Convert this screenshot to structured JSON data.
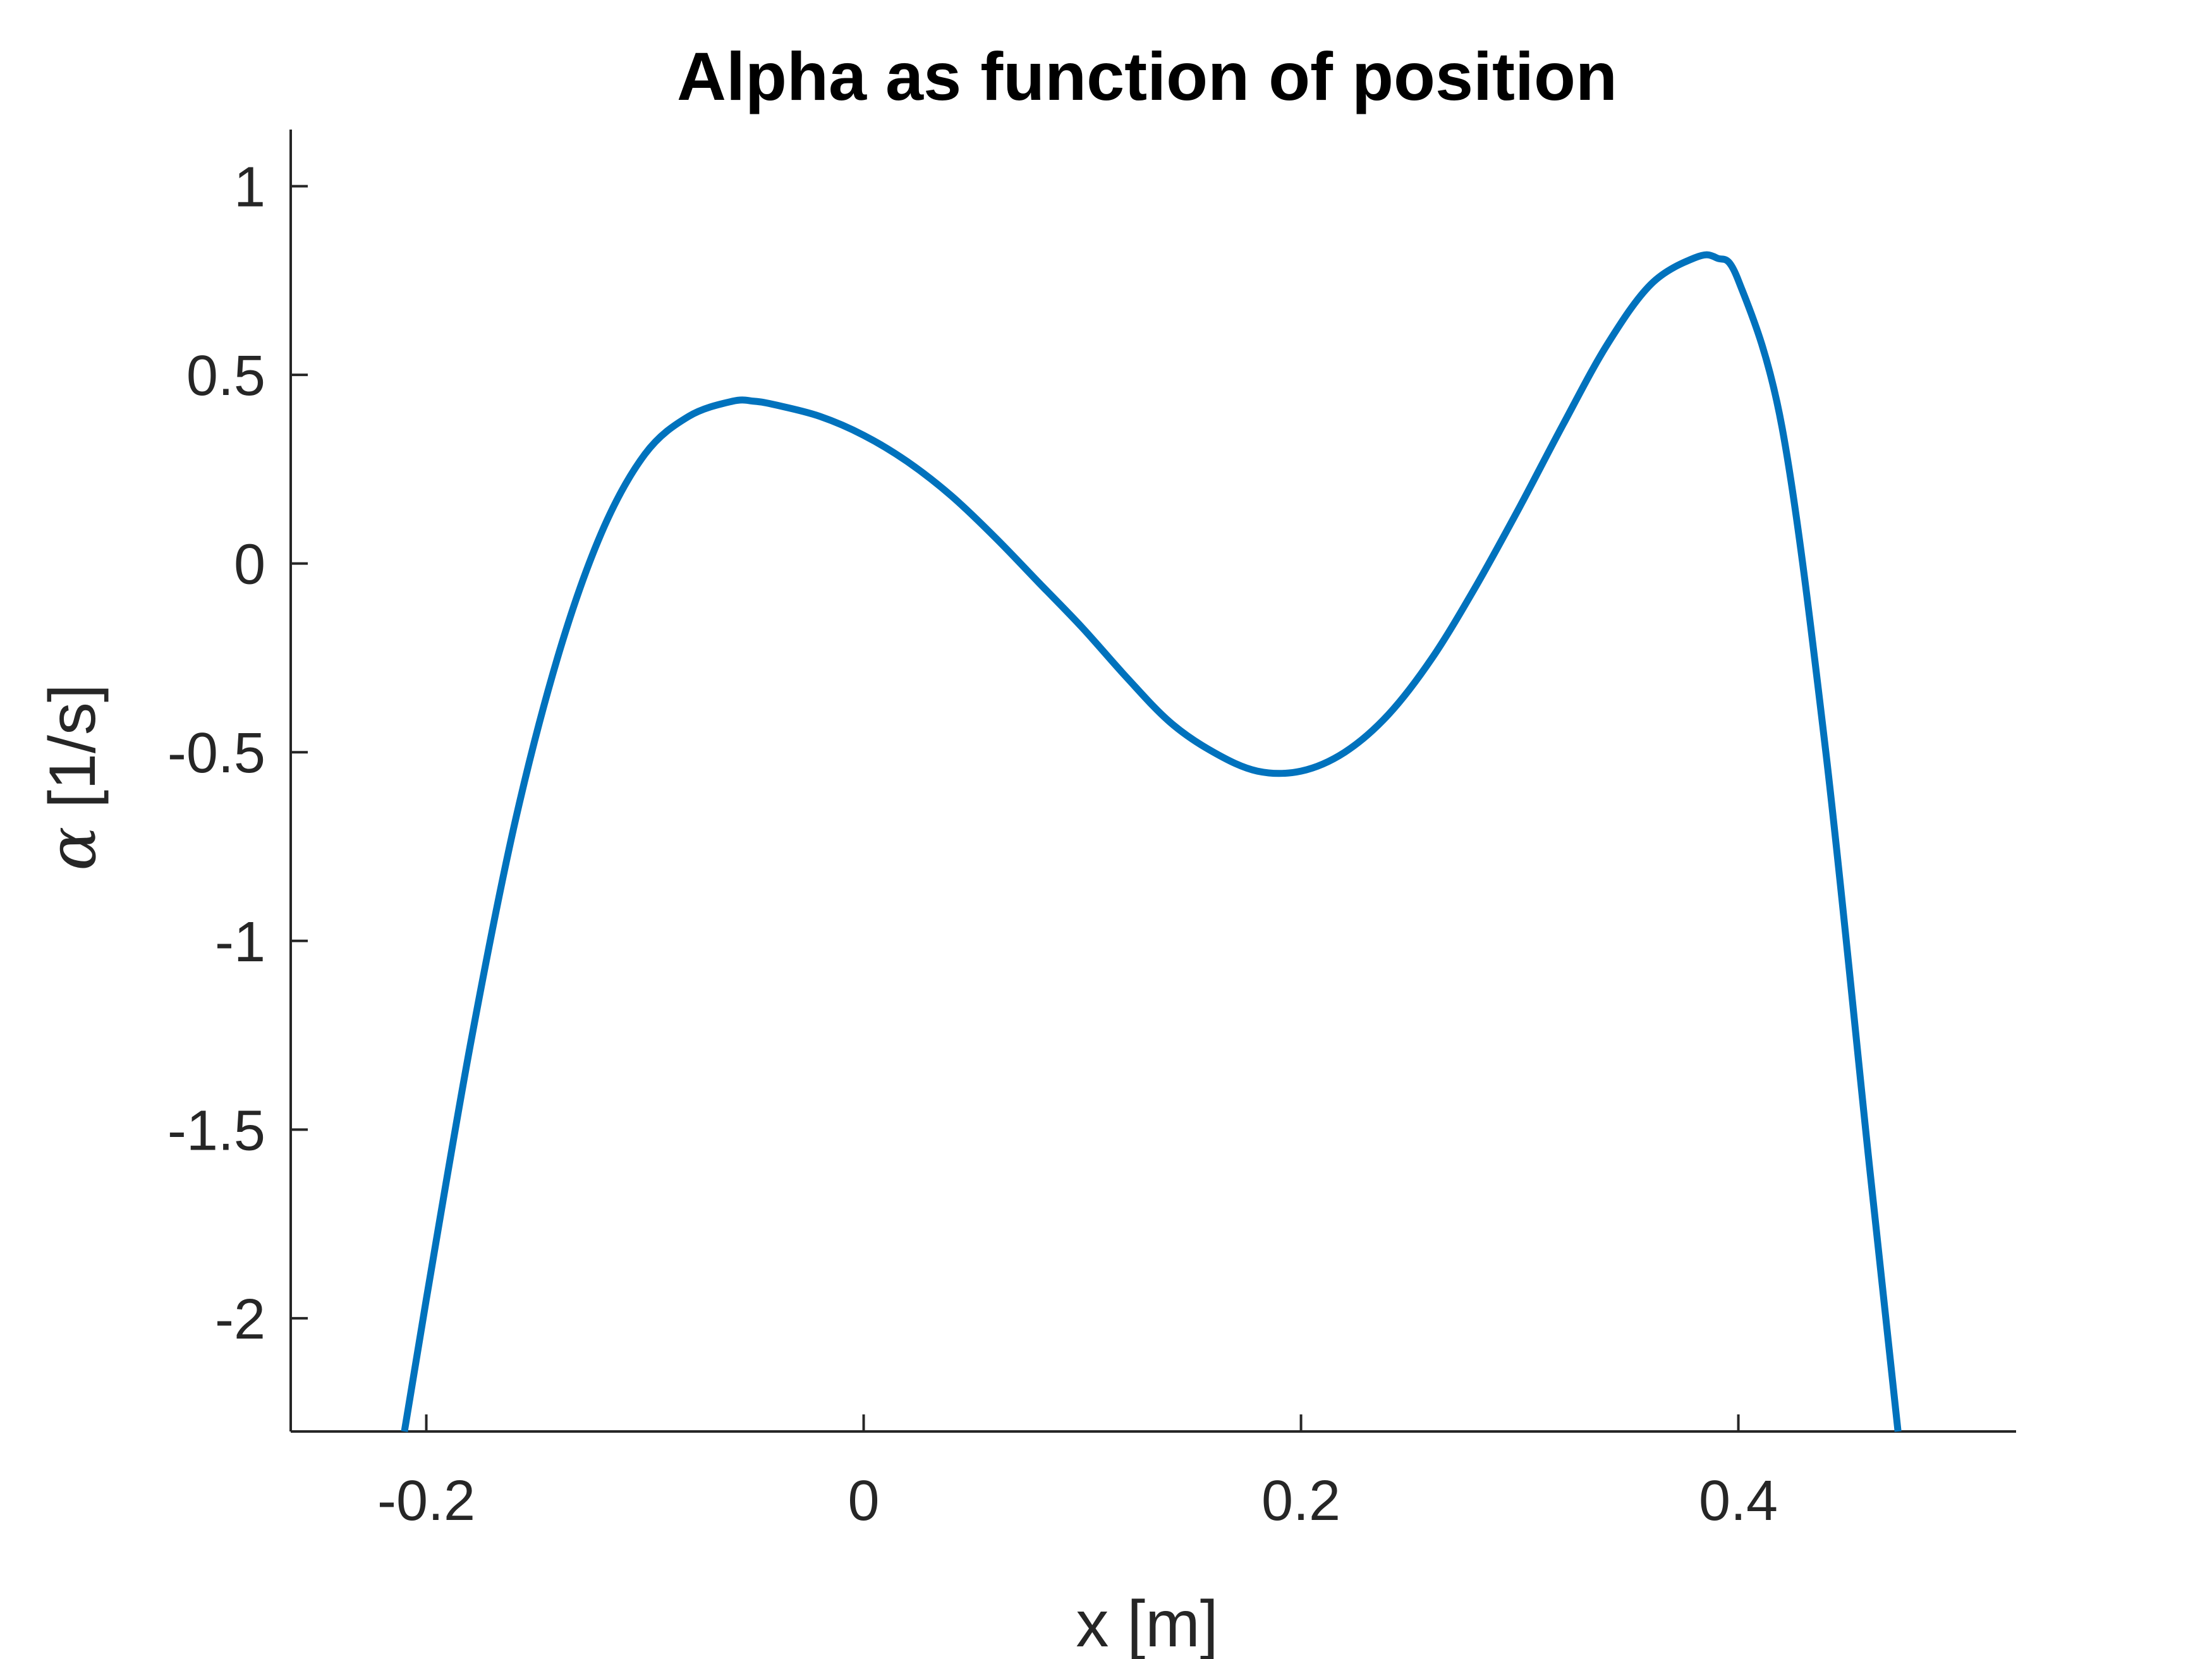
{
  "chart_data": {
    "type": "line",
    "title": "Alpha as function of position",
    "xlabel": "x [m]",
    "ylabel_symbol": "α",
    "ylabel_unit": " [1/s]",
    "xlim": [
      -0.262,
      0.527
    ],
    "ylim": [
      -2.3,
      1.15
    ],
    "xticks": [
      -0.2,
      0,
      0.2,
      0.4
    ],
    "xtick_labels": [
      "-0.2",
      "0",
      "0.2",
      "0.4"
    ],
    "yticks": [
      1,
      0.5,
      0,
      -0.5,
      -1,
      -1.5,
      -2
    ],
    "ytick_labels": [
      "1",
      "0.5",
      "0",
      "-0.5",
      "-1",
      "-1.5",
      "-2"
    ],
    "grid": false,
    "series": [
      {
        "color": "#0072BD",
        "x": [
          -0.21,
          -0.2,
          -0.18,
          -0.16,
          -0.14,
          -0.12,
          -0.1,
          -0.08,
          -0.06,
          -0.05,
          -0.04,
          -0.02,
          0,
          0.02,
          0.04,
          0.06,
          0.08,
          0.1,
          0.12,
          0.14,
          0.16,
          0.18,
          0.2,
          0.22,
          0.24,
          0.26,
          0.28,
          0.3,
          0.32,
          0.34,
          0.36,
          0.38,
          0.39,
          0.4,
          0.42,
          0.44,
          0.46,
          0.473
        ],
        "y": [
          -2.3,
          -1.95,
          -1.28,
          -0.7,
          -0.25,
          0.08,
          0.29,
          0.39,
          0.43,
          0.43,
          0.42,
          0.39,
          0.34,
          0.27,
          0.18,
          0.07,
          -0.05,
          -0.17,
          -0.3,
          -0.42,
          -0.5,
          -0.55,
          -0.55,
          -0.5,
          -0.4,
          -0.25,
          -0.06,
          0.15,
          0.37,
          0.58,
          0.74,
          0.81,
          0.81,
          0.75,
          0.36,
          -0.5,
          -1.6,
          -2.3
        ]
      }
    ]
  }
}
